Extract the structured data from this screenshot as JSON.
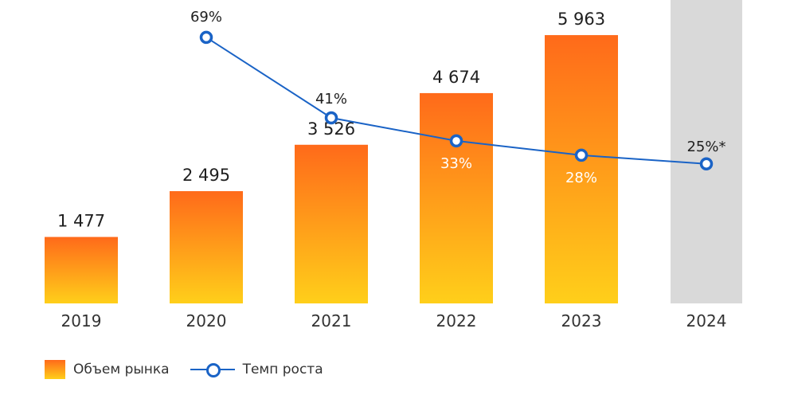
{
  "chart_data": {
    "type": "bar",
    "categories": [
      "2019",
      "2020",
      "2021",
      "2022",
      "2023",
      "2024"
    ],
    "series": [
      {
        "name": "Объем рынка",
        "type": "bar",
        "values": [
          1477,
          2495,
          3526,
          4674,
          5963,
          null
        ],
        "labels": [
          "1 477",
          "2 495",
          "3 526",
          "4 674",
          "5 963",
          ""
        ]
      },
      {
        "name": "Темп роста",
        "type": "line",
        "values": [
          null,
          69,
          41,
          33,
          28,
          25
        ],
        "labels": [
          "",
          "69%",
          "41%",
          "33%",
          "28%",
          "25%*"
        ]
      }
    ],
    "forecast_category": "2024",
    "colors": {
      "bar_top": "#ff6a1a",
      "bar_bottom": "#ffcf1a",
      "line": "#1a63c6",
      "forecast_band": "#d9d9d9"
    }
  },
  "legend": {
    "bar_label": "Объем рынка",
    "line_label": "Темп роста"
  }
}
